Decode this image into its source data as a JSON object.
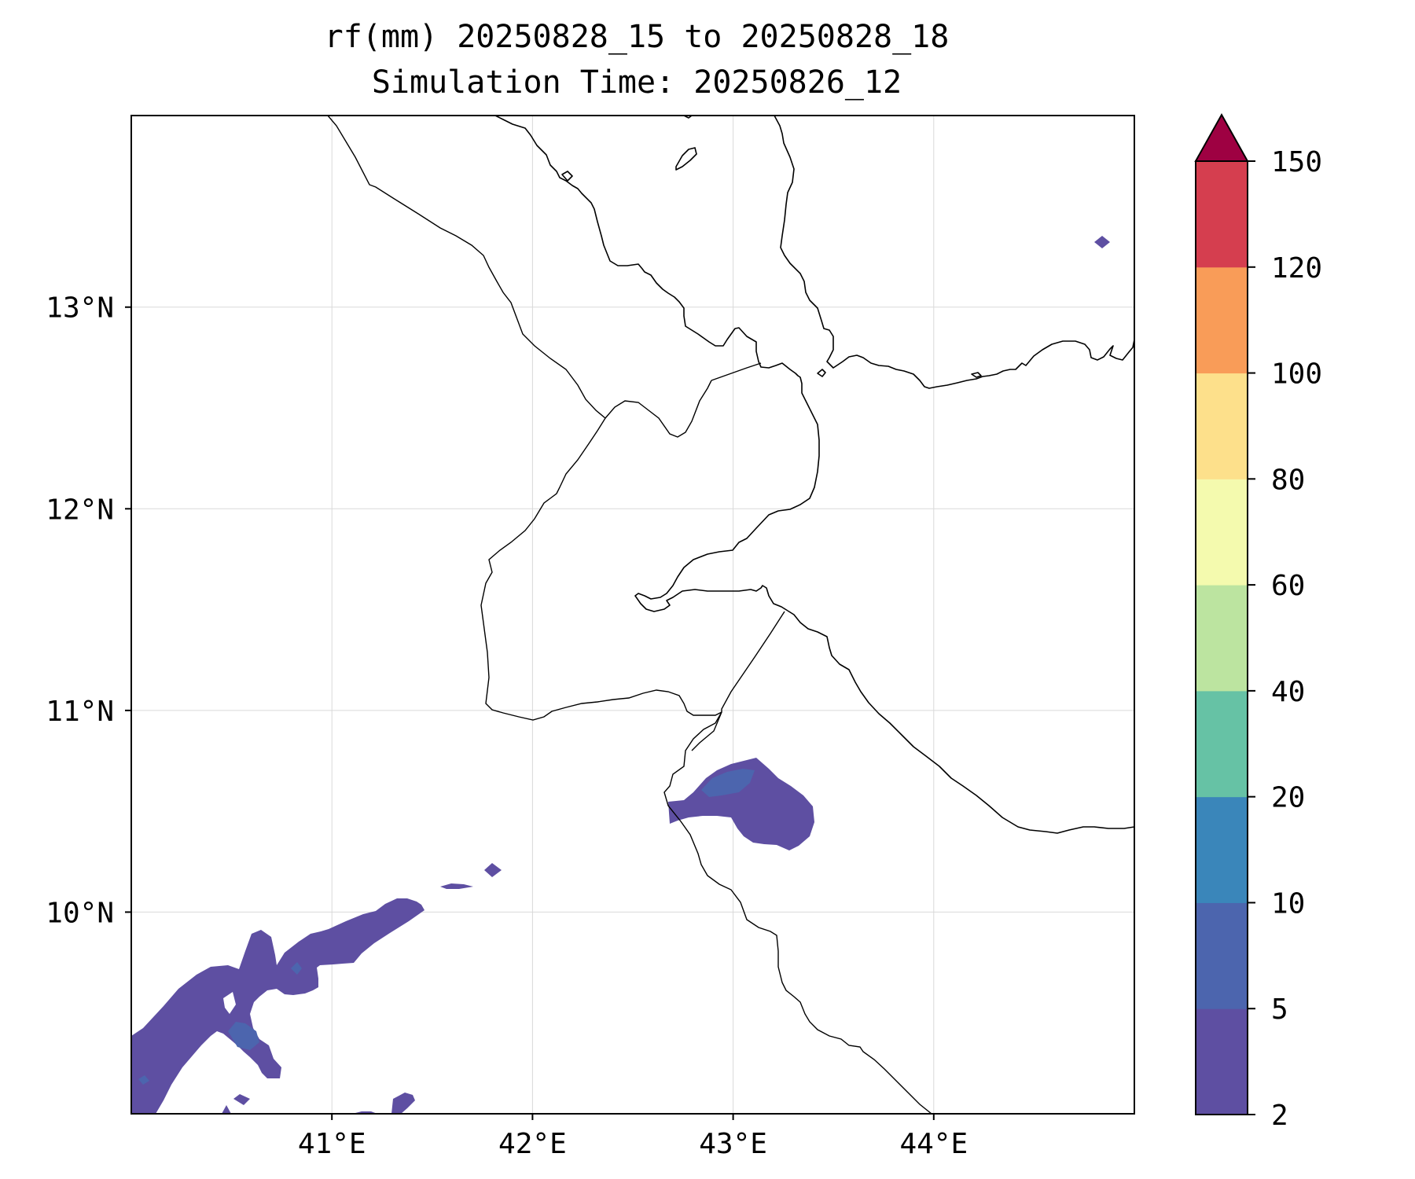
{
  "title": {
    "line1": "rf(mm) 20250828_15 to 20250828_18",
    "line2": "Simulation Time: 20250826_12"
  },
  "map": {
    "lon_range": [
      40.0,
      45.0
    ],
    "lat_range": [
      9.0,
      13.95
    ],
    "lon_ticks": [
      {
        "value": 41,
        "label": "41°E"
      },
      {
        "value": 42,
        "label": "42°E"
      },
      {
        "value": 43,
        "label": "43°E"
      },
      {
        "value": 44,
        "label": "44°E"
      }
    ],
    "lat_ticks": [
      {
        "value": 10,
        "label": "10°N"
      },
      {
        "value": 11,
        "label": "11°N"
      },
      {
        "value": 12,
        "label": "12°N"
      },
      {
        "value": 13,
        "label": "13°N"
      }
    ],
    "grid": true
  },
  "colorbar": {
    "levels": [
      2,
      5,
      10,
      20,
      40,
      60,
      80,
      100,
      120,
      150
    ],
    "labels": [
      "2",
      "5",
      "10",
      "20",
      "40",
      "60",
      "80",
      "100",
      "120",
      "150"
    ],
    "colors": [
      "#5E4FA2",
      "#4C65AE",
      "#3A86BA",
      "#66C2A5",
      "#BCE4A0",
      "#F4FAAE",
      "#FDE08B",
      "#F99C58",
      "#D53E4F"
    ],
    "extend_color": "#9E0142",
    "extend": "max"
  },
  "rain_fill_color": "#5E4FA2",
  "rain_core_color": "#4C65AE",
  "line_color": "#000000"
}
